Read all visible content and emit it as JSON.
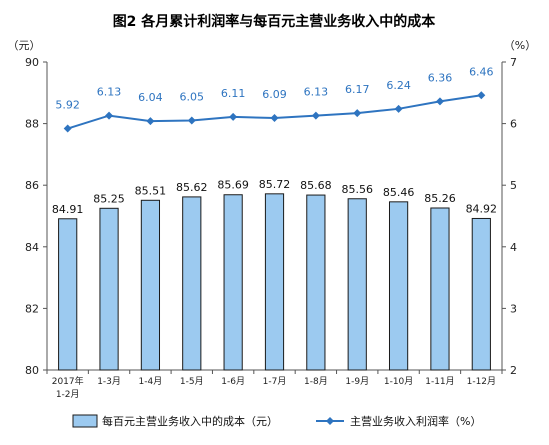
{
  "chart_data": {
    "type": "bar",
    "title": "图2  各月累计利润率与每百元主营业务收入中的成本",
    "left_unit": "（元）",
    "right_unit": "（%）",
    "categories": [
      [
        "2017年",
        "1-2月"
      ],
      [
        "1-3月"
      ],
      [
        "1-4月"
      ],
      [
        "1-5月"
      ],
      [
        "1-6月"
      ],
      [
        "1-7月"
      ],
      [
        "1-8月"
      ],
      [
        "1-9月"
      ],
      [
        "1-10月"
      ],
      [
        "1-11月"
      ],
      [
        "1-12月"
      ]
    ],
    "left_axis": {
      "range": [
        80,
        90
      ],
      "ticks": [
        80,
        82,
        84,
        86,
        88,
        90
      ]
    },
    "right_axis": {
      "range": [
        2,
        7
      ],
      "ticks": [
        2,
        3,
        4,
        5,
        6,
        7
      ]
    },
    "series": [
      {
        "name": "每百元主营业务收入中的成本（元）",
        "type": "bar",
        "axis": "left",
        "color": "#9ccaf0",
        "values": [
          84.91,
          85.25,
          85.51,
          85.62,
          85.69,
          85.72,
          85.68,
          85.56,
          85.46,
          85.26,
          84.92
        ]
      },
      {
        "name": "主营业务收入利润率（%）",
        "type": "line",
        "axis": "right",
        "color": "#2e74c0",
        "values": [
          5.92,
          6.13,
          6.04,
          6.05,
          6.11,
          6.09,
          6.13,
          6.17,
          6.24,
          6.36,
          6.46
        ]
      }
    ],
    "legend_position": "bottom",
    "grid": false
  }
}
